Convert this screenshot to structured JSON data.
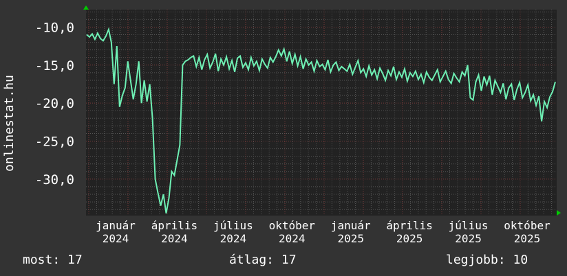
{
  "chart_data": {
    "type": "line",
    "ylabel": "onlinestat.hu",
    "ylim": [
      -34.8,
      -7.7
    ],
    "yticks": [
      -10,
      -15,
      -20,
      -25,
      -30
    ],
    "ytick_labels": [
      "-10,0",
      "-15,0",
      "-20,0",
      "-25,0",
      "-30,0"
    ],
    "xtick_labels": [
      {
        "month": "január",
        "year": "2024"
      },
      {
        "month": "április",
        "year": "2024"
      },
      {
        "month": "július",
        "year": "2024"
      },
      {
        "month": "október",
        "year": "2024"
      },
      {
        "month": "január",
        "year": "2025"
      },
      {
        "month": "április",
        "year": "2025"
      },
      {
        "month": "július",
        "year": "2025"
      },
      {
        "month": "október",
        "year": "2025"
      }
    ],
    "grid": true,
    "colors": {
      "background": "#333333",
      "plot": "#222222",
      "line": "#6ef0b4",
      "grid_minor": "#555555",
      "grid_major": "#7a3a3a",
      "axis_arrow": "#00cc00"
    },
    "series": [
      {
        "values": [
          -11.0,
          -11.3,
          -10.9,
          -11.6,
          -10.8,
          -11.5,
          -11.8,
          -11.2,
          -10.3,
          -12.0,
          -17.5,
          -12.5,
          -20.5,
          -19.0,
          -18.0,
          -14.5,
          -17.0,
          -19.5,
          -17.5,
          -14.5,
          -20.0,
          -17.0,
          -19.8,
          -17.5,
          -22.0,
          -30.0,
          -31.8,
          -33.5,
          -32.0,
          -34.5,
          -32.5,
          -29.0,
          -29.5,
          -27.5,
          -25.5,
          -15.0,
          -14.5,
          -14.3,
          -14.0,
          -13.8,
          -15.2,
          -14.0,
          -15.6,
          -14.3,
          -13.6,
          -15.4,
          -14.6,
          -13.5,
          -15.8,
          -14.2,
          -15.0,
          -13.9,
          -15.5,
          -14.4,
          -15.9,
          -14.1,
          -13.8,
          -15.3,
          -14.7,
          -15.6,
          -14.0,
          -15.1,
          -14.5,
          -15.7,
          -14.2,
          -14.9,
          -15.4,
          -14.0,
          -14.6,
          -13.9,
          -13.0,
          -13.8,
          -12.9,
          -14.5,
          -13.2,
          -14.8,
          -13.6,
          -15.1,
          -13.9,
          -15.5,
          -14.2,
          -15.0,
          -14.6,
          -15.8,
          -14.4,
          -15.2,
          -14.9,
          -15.6,
          -14.3,
          -15.9,
          -15.0,
          -14.6,
          -15.7,
          -15.2,
          -15.5,
          -15.8,
          -14.9,
          -16.2,
          -15.3,
          -14.4,
          -16.0,
          -15.5,
          -16.5,
          -15.1,
          -16.3,
          -15.6,
          -16.8,
          -15.4,
          -16.1,
          -17.0,
          -15.7,
          -16.4,
          -15.2,
          -16.9,
          -15.9,
          -16.6,
          -15.5,
          -17.1,
          -16.0,
          -16.5,
          -15.8,
          -16.9,
          -16.2,
          -17.3,
          -15.9,
          -16.6,
          -17.0,
          -16.3,
          -15.6,
          -17.2,
          -16.5,
          -15.8,
          -16.9,
          -17.4,
          -16.1,
          -16.7,
          -17.2,
          -15.9,
          -16.4,
          -15.0,
          -19.3,
          -19.6,
          -17.2,
          -16.3,
          -18.4,
          -16.5,
          -17.6,
          -16.4,
          -18.9,
          -17.0,
          -17.8,
          -18.6,
          -17.4,
          -19.5,
          -18.0,
          -17.5,
          -19.6,
          -18.2,
          -17.3,
          -19.3,
          -18.6,
          -17.6,
          -19.7,
          -18.9,
          -20.3,
          -19.1,
          -22.4,
          -19.8,
          -20.6,
          -19.2,
          -18.5,
          -17.2
        ]
      }
    ]
  },
  "legend": {
    "current_label": "most: 17",
    "average_label": "átlag: 17",
    "best_label": "legjobb: 10"
  }
}
